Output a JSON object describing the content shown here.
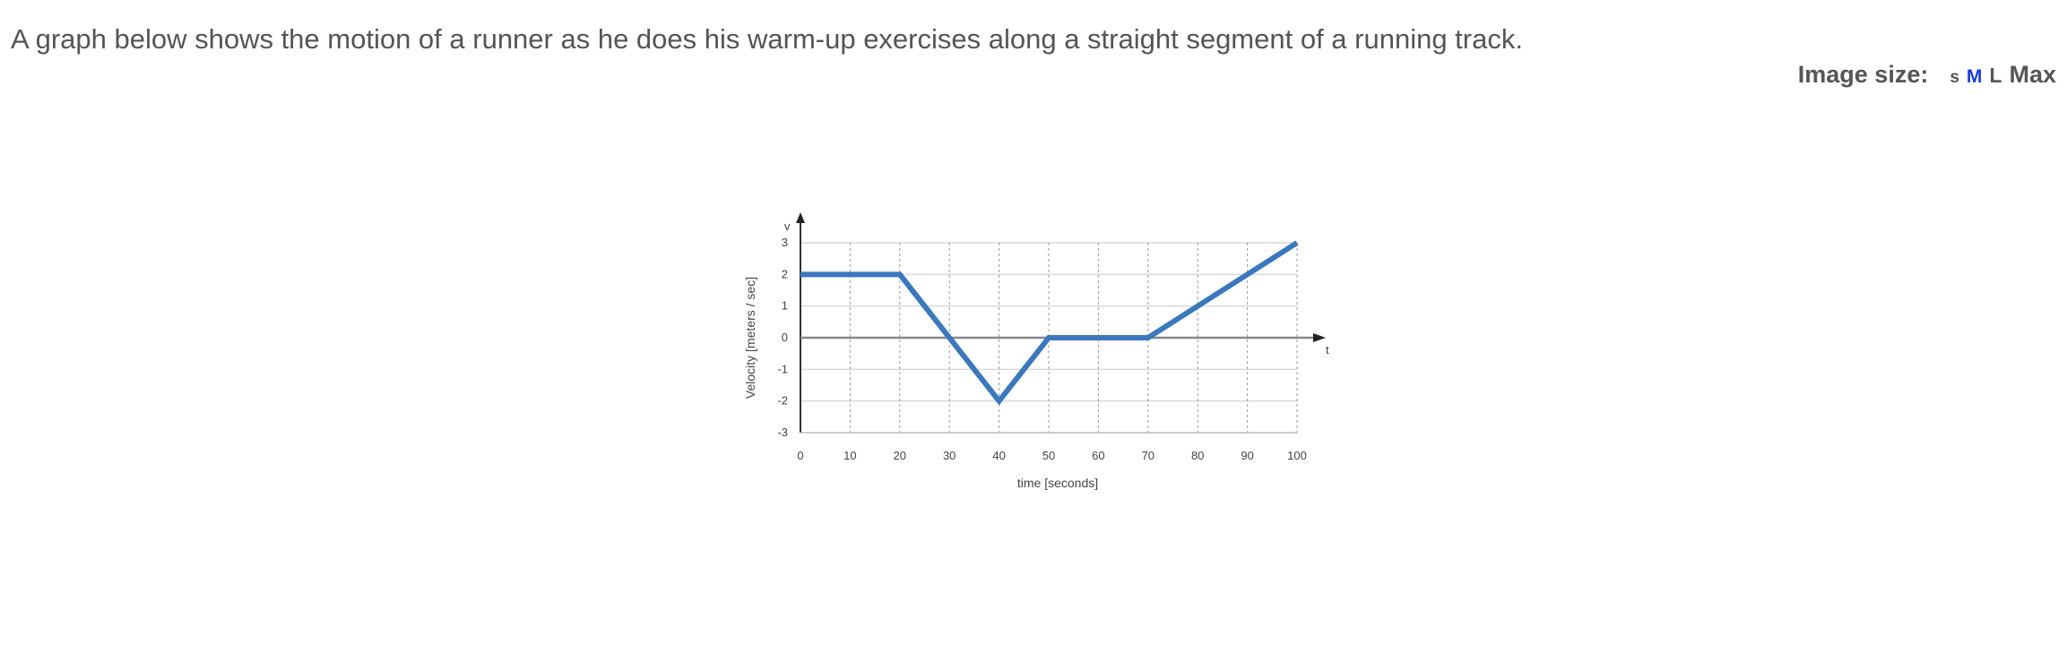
{
  "prompt": "A graph below shows the motion of a runner as he does his warm-up exercises along a straight segment of a running track.",
  "image_size": {
    "label": "Image size:",
    "options": [
      "s",
      "M",
      "L",
      "Max"
    ],
    "selected": "M"
  },
  "chart_data": {
    "type": "line",
    "title": "",
    "xlabel": "time [seconds]",
    "ylabel": "Velocity [meters / sec]",
    "x_axis_letter": "t",
    "y_axis_letter": "v",
    "xlim": [
      0,
      100
    ],
    "ylim": [
      -3,
      3
    ],
    "x_ticks": [
      0,
      10,
      20,
      30,
      40,
      50,
      60,
      70,
      80,
      90,
      100
    ],
    "y_ticks": [
      3,
      2,
      1,
      0,
      -1,
      -2,
      -3
    ],
    "grid": true,
    "series": [
      {
        "x": [
          0,
          20,
          40,
          50,
          70,
          100
        ],
        "y": [
          2,
          2,
          -2,
          0,
          0,
          3
        ],
        "color": "#3b78bd"
      }
    ]
  }
}
